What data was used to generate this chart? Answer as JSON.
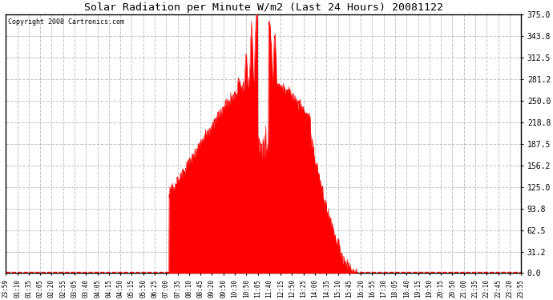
{
  "title": "Solar Radiation per Minute W/m2 (Last 24 Hours) 20081122",
  "copyright_text": "Copyright 2008 Cartronics.com",
  "background_color": "#ffffff",
  "plot_bg_color": "#ffffff",
  "fill_color": "#ff0000",
  "line_color": "#ff0000",
  "dashed_line_color": "#ff0000",
  "grid_color": "#bbbbbb",
  "y_ticks": [
    0.0,
    31.2,
    62.5,
    93.8,
    125.0,
    156.2,
    187.5,
    218.8,
    250.0,
    281.2,
    312.5,
    343.8,
    375.0
  ],
  "y_max": 375.0,
  "y_min": 0.0,
  "x_labels": [
    "23:59",
    "01:10",
    "01:35",
    "02:05",
    "02:20",
    "02:55",
    "03:05",
    "03:40",
    "04:05",
    "04:15",
    "04:50",
    "05:15",
    "05:50",
    "06:25",
    "07:00",
    "07:35",
    "08:10",
    "08:45",
    "09:20",
    "09:50",
    "10:30",
    "10:50",
    "11:05",
    "11:40",
    "12:15",
    "12:50",
    "13:25",
    "14:00",
    "14:35",
    "15:10",
    "15:45",
    "16:20",
    "16:55",
    "17:30",
    "18:05",
    "18:40",
    "19:15",
    "19:50",
    "20:15",
    "20:50",
    "21:00",
    "21:35",
    "22:10",
    "22:45",
    "23:20",
    "23:55"
  ],
  "num_points": 1440
}
